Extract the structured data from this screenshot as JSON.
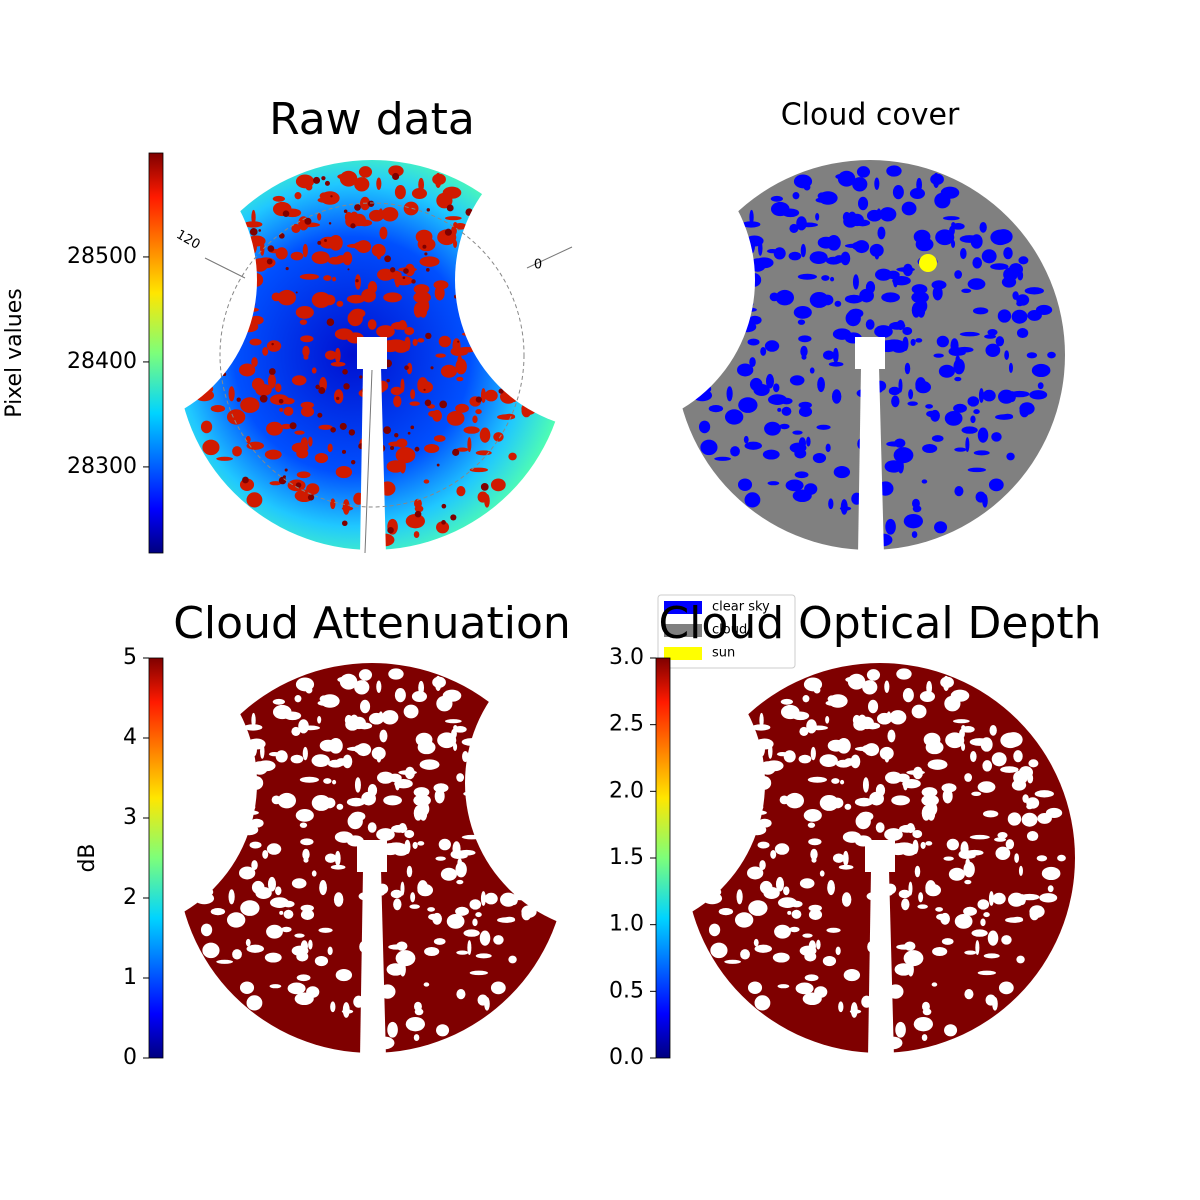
{
  "chart_data": [
    {
      "type": "image",
      "title": "Raw data",
      "colorbar": {
        "label": "Pixel values",
        "ylim": [
          28218,
          28599
        ],
        "yticks": [
          28300,
          28400,
          28500
        ]
      },
      "annotations": [
        "120",
        "0"
      ]
    },
    {
      "type": "image",
      "title": "Cloud cover",
      "series": [
        {
          "name": "clear sky",
          "color": "#0000ff"
        },
        {
          "name": "cloud",
          "color": "#808080"
        },
        {
          "name": "sun",
          "color": "#ffff00"
        }
      ]
    },
    {
      "type": "image",
      "title": "Cloud Attenuation",
      "colorbar": {
        "label": "dB",
        "ylim": [
          0,
          5
        ],
        "yticks": [
          0,
          1,
          2,
          3,
          4,
          5
        ]
      }
    },
    {
      "type": "image",
      "title": "Cloud Optical Depth",
      "colorbar": {
        "ylim": [
          0,
          3
        ],
        "yticks": [
          {
            "value": 0,
            "label": "0.0"
          },
          {
            "value": 0.5,
            "label": "0.5"
          },
          {
            "value": 1,
            "label": "1.0"
          },
          {
            "value": 1.5,
            "label": "1.5"
          },
          {
            "value": 2,
            "label": "2.0"
          },
          {
            "value": 2.5,
            "label": "2.5"
          },
          {
            "value": 3,
            "label": "3.0"
          }
        ]
      }
    }
  ]
}
